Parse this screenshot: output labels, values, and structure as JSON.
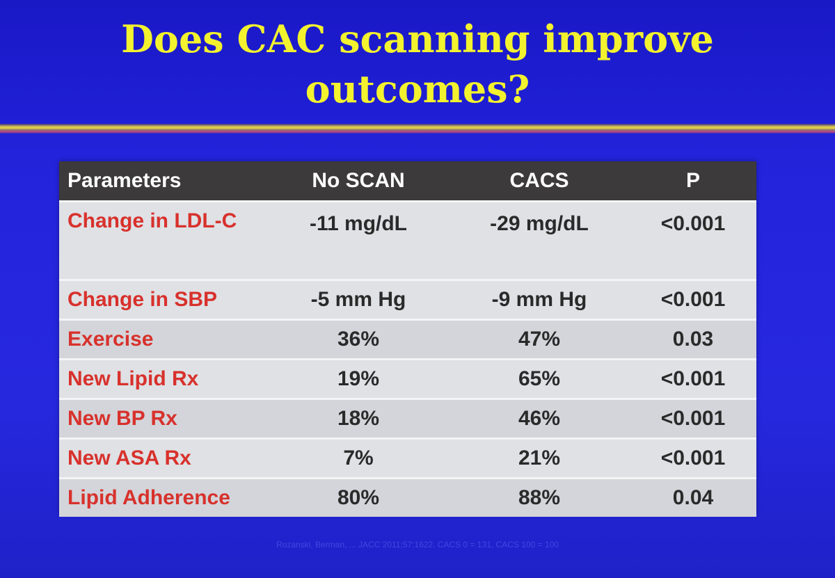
{
  "slide": {
    "title": "Does CAC scanning improve outcomes?",
    "accent_title_color": "#f2f22e",
    "background_color": "#2424dc"
  },
  "table": {
    "headers": [
      "Parameters",
      "No SCAN",
      "CACS",
      "P"
    ],
    "rows": [
      {
        "parameter": "Change in LDL-C",
        "no_scan": "-11 mg/dL",
        "cacs": "-29 mg/dL",
        "p": "<0.001"
      },
      {
        "parameter": "Change in SBP",
        "no_scan": "-5 mm Hg",
        "cacs": "-9 mm Hg",
        "p": "<0.001"
      },
      {
        "parameter": "Exercise",
        "no_scan": "36%",
        "cacs": "47%",
        "p": "0.03"
      },
      {
        "parameter": "New Lipid Rx",
        "no_scan": "19%",
        "cacs": "65%",
        "p": "<0.001"
      },
      {
        "parameter": "New BP Rx",
        "no_scan": "18%",
        "cacs": "46%",
        "p": "<0.001"
      },
      {
        "parameter": "New ASA Rx",
        "no_scan": "7%",
        "cacs": "21%",
        "p": "<0.001"
      },
      {
        "parameter": "Lipid Adherence",
        "no_scan": "80%",
        "cacs": "88%",
        "p": "0.04"
      }
    ],
    "header_bg_color": "#3c3a3a",
    "parameter_text_color": "#d8312c"
  },
  "footnote": "Rozanski, Berman, ... JACC 2011;57:1622. CACS 0 = 131, CACS 100 = 100"
}
